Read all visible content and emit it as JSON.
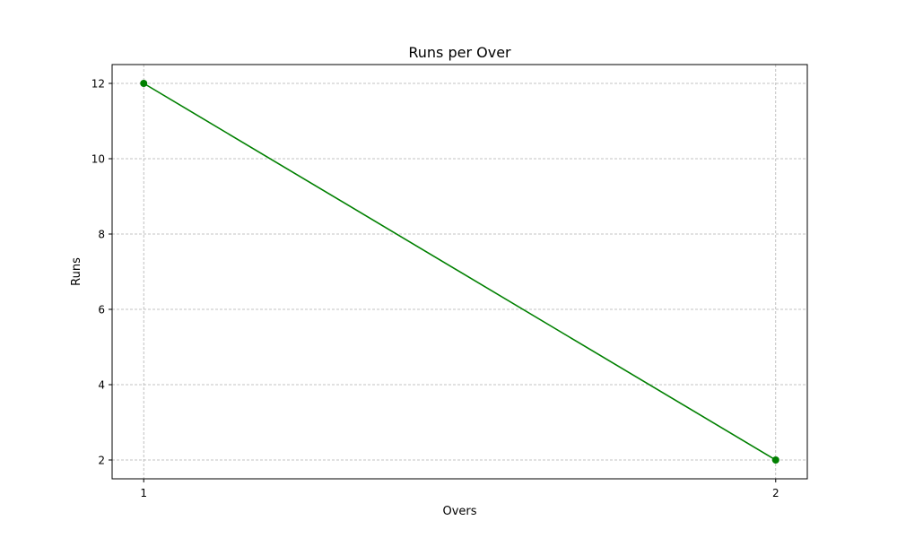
{
  "chart_data": {
    "type": "line",
    "title": "Runs per Over",
    "xlabel": "Overs",
    "ylabel": "Runs",
    "x": [
      1,
      2
    ],
    "x_tick_labels": [
      "1",
      "2"
    ],
    "y_ticks": [
      2,
      4,
      6,
      8,
      10,
      12
    ],
    "y_tick_labels": [
      "2",
      "4",
      "6",
      "8",
      "10",
      "12"
    ],
    "xlim": [
      0.95,
      2.05
    ],
    "ylim": [
      1.5,
      12.5
    ],
    "grid": true,
    "legend": "none",
    "series": [
      {
        "values": [
          12,
          2
        ],
        "color": "#008000",
        "marker": "circle"
      }
    ]
  }
}
